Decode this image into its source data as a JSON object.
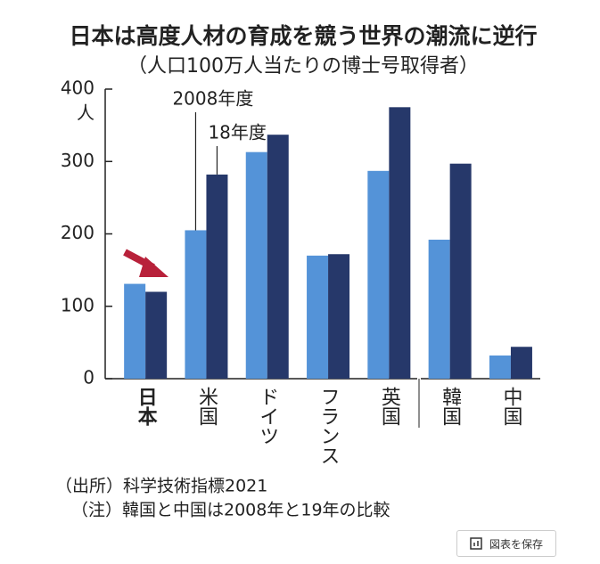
{
  "chart_data": {
    "type": "bar",
    "title": "日本は高度人材の育成を競う世界の潮流に逆行",
    "subtitle": "（人口100万人当たりの博士号取得者）",
    "ylabel": "人",
    "categories": [
      "日本",
      "米国",
      "ドイツ",
      "フランス",
      "英国",
      "韓国",
      "中国"
    ],
    "series": [
      {
        "name": "2008年度",
        "color": "#5493d8",
        "values": [
          131,
          205,
          313,
          170,
          287,
          192,
          32
        ]
      },
      {
        "name": "18年度",
        "color": "#26386a",
        "values": [
          120,
          282,
          337,
          172,
          375,
          297,
          44
        ]
      }
    ],
    "ylim": [
      0,
      400
    ],
    "yticks": [
      0,
      100,
      200,
      300,
      400
    ],
    "notes": [
      "（出所）科学技術指標2021",
      "（注）韓国と中国は2008年と19年の比較"
    ]
  },
  "button": "図表を保存"
}
